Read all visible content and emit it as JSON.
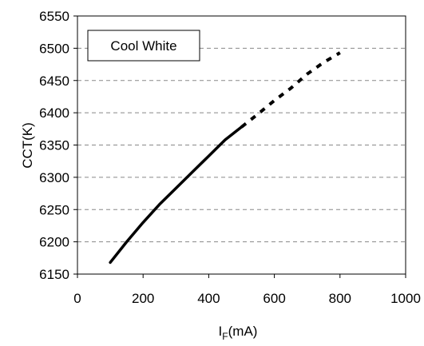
{
  "chart_data": {
    "type": "line",
    "xlabel_main": "I",
    "xlabel_sub": "F",
    "xlabel_unit": "(mA)",
    "ylabel": "CCT(K)",
    "xlim": [
      0,
      1000
    ],
    "ylim": [
      6150,
      6550
    ],
    "x_ticks": [
      "0",
      "200",
      "400",
      "600",
      "800",
      "1000"
    ],
    "y_ticks": [
      "6150",
      "6200",
      "6250",
      "6300",
      "6350",
      "6400",
      "6450",
      "6500",
      "6550"
    ],
    "grid": "horizontal dashed",
    "legend_position": "top-left",
    "annotation": "Cool White",
    "series": [
      {
        "style": "solid",
        "color": "#000000",
        "x": [
          100,
          150,
          200,
          250,
          300,
          350,
          400,
          450,
          500
        ],
        "y": [
          6168,
          6200,
          6230,
          6258,
          6283,
          6308,
          6333,
          6358,
          6378
        ]
      },
      {
        "style": "dashed",
        "color": "#000000",
        "x": [
          500,
          550,
          600,
          650,
          700,
          750,
          800
        ],
        "y": [
          6378,
          6398,
          6419,
          6438,
          6460,
          6478,
          6493
        ]
      }
    ]
  }
}
